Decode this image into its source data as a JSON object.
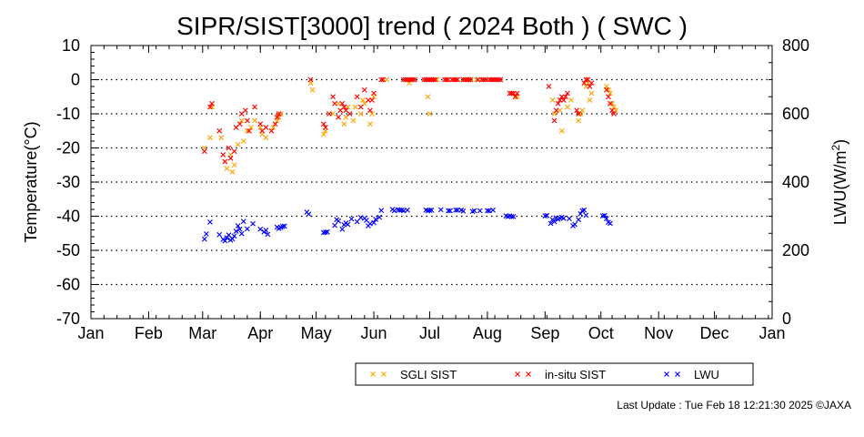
{
  "chart_data": {
    "type": "scatter",
    "title": "SIPR/SIST[3000] trend ( 2024 Both ) ( SWC )",
    "ylabel": "Temperature(°C)",
    "y2label_main": "LWU(W/m",
    "y2label_sup": "2",
    "y2label_tail": ")",
    "ylim": [
      -70,
      10
    ],
    "y2lim": [
      0,
      800
    ],
    "xlim": [
      0,
      366
    ],
    "yticks": [
      "10",
      "0",
      "-10",
      "-20",
      "-30",
      "-40",
      "-50",
      "-60",
      "-70"
    ],
    "y2ticks": [
      "800",
      "600",
      "400",
      "200",
      "0"
    ],
    "month_labels": [
      "Jan",
      "Feb",
      "Mar",
      "Apr",
      "May",
      "Jun",
      "Jul",
      "Aug",
      "Sep",
      "Oct",
      "Nov",
      "Dec",
      "Jan"
    ],
    "month_start_days": [
      0,
      31,
      60,
      91,
      121,
      152,
      182,
      213,
      244,
      274,
      305,
      335,
      366
    ],
    "grid": "dotted horizontal",
    "legend_position": "bottom-right",
    "series": [
      {
        "name": "SGLI SIST",
        "axis": "left",
        "color": "#ffa500",
        "points": [
          [
            61,
            -20
          ],
          [
            64,
            -17
          ],
          [
            65,
            -8
          ],
          [
            70,
            -17
          ],
          [
            72,
            -24
          ],
          [
            73,
            -26
          ],
          [
            75,
            -22
          ],
          [
            76,
            -27
          ],
          [
            77,
            -25
          ],
          [
            79,
            -19
          ],
          [
            81,
            -12
          ],
          [
            82,
            -18
          ],
          [
            84,
            -15
          ],
          [
            86,
            -14
          ],
          [
            88,
            -12
          ],
          [
            91,
            -14
          ],
          [
            92,
            -16
          ],
          [
            94,
            -17
          ],
          [
            98,
            -14
          ],
          [
            100,
            -12
          ],
          [
            101,
            -11
          ],
          [
            102,
            -10
          ],
          [
            118,
            -1
          ],
          [
            119,
            -3
          ],
          [
            125,
            -16
          ],
          [
            126,
            -15
          ],
          [
            130,
            -10
          ],
          [
            133,
            -7
          ],
          [
            134,
            -9
          ],
          [
            136,
            -13
          ],
          [
            137,
            -11
          ],
          [
            138,
            -8
          ],
          [
            141,
            -12
          ],
          [
            142,
            -8
          ],
          [
            145,
            -10
          ],
          [
            146,
            -6
          ],
          [
            147,
            -7
          ],
          [
            150,
            -13
          ],
          [
            151,
            -10
          ],
          [
            152,
            -5
          ],
          [
            159,
            0
          ],
          [
            170,
            0
          ],
          [
            171,
            -1
          ],
          [
            181,
            -5
          ],
          [
            182,
            -10
          ],
          [
            186,
            0
          ],
          [
            191,
            0
          ],
          [
            196,
            0
          ],
          [
            200,
            0
          ],
          [
            203,
            0
          ],
          [
            207,
            0
          ],
          [
            212,
            0
          ],
          [
            216,
            0
          ],
          [
            220,
            0
          ],
          [
            227,
            -4
          ],
          [
            228,
            -5
          ],
          [
            229,
            -5
          ],
          [
            248,
            -6
          ],
          [
            249,
            -10
          ],
          [
            252,
            -9
          ],
          [
            253,
            -15
          ],
          [
            256,
            -8
          ],
          [
            258,
            -6
          ],
          [
            262,
            -12
          ],
          [
            263,
            -10
          ],
          [
            264,
            -9
          ],
          [
            266,
            -2
          ],
          [
            267,
            -1
          ],
          [
            268,
            -6
          ],
          [
            269,
            -4
          ],
          [
            277,
            -2
          ],
          [
            278,
            -3
          ],
          [
            279,
            -4
          ],
          [
            280,
            -7
          ],
          [
            281,
            -8
          ],
          [
            282,
            -9
          ]
        ]
      },
      {
        "name": "in-situ SIST",
        "axis": "left",
        "color": "#ff0000",
        "points": [
          [
            61,
            -21
          ],
          [
            64,
            -8
          ],
          [
            65,
            -7
          ],
          [
            69,
            -15
          ],
          [
            71,
            -22
          ],
          [
            72,
            -24
          ],
          [
            74,
            -20
          ],
          [
            75,
            -23
          ],
          [
            77,
            -21
          ],
          [
            78,
            -14
          ],
          [
            80,
            -13
          ],
          [
            81,
            -10
          ],
          [
            83,
            -9
          ],
          [
            84,
            -12
          ],
          [
            85,
            -15
          ],
          [
            88,
            -8
          ],
          [
            91,
            -13
          ],
          [
            92,
            -15
          ],
          [
            94,
            -14
          ],
          [
            97,
            -15
          ],
          [
            99,
            -13
          ],
          [
            100,
            -11
          ],
          [
            101,
            -10
          ],
          [
            118,
            0
          ],
          [
            125,
            -13
          ],
          [
            126,
            -14
          ],
          [
            128,
            -10
          ],
          [
            130,
            -5
          ],
          [
            131,
            -7
          ],
          [
            133,
            -11
          ],
          [
            134,
            -9
          ],
          [
            135,
            -7
          ],
          [
            136,
            -8
          ],
          [
            137,
            -9
          ],
          [
            139,
            -10
          ],
          [
            143,
            -5
          ],
          [
            145,
            -8
          ],
          [
            147,
            -3
          ],
          [
            149,
            -6
          ],
          [
            150,
            -9
          ],
          [
            151,
            -6
          ],
          [
            152,
            -4
          ],
          [
            156,
            0
          ],
          [
            157,
            0
          ],
          [
            168,
            0
          ],
          [
            169,
            0
          ],
          [
            170,
            0
          ],
          [
            171,
            0
          ],
          [
            172,
            0
          ],
          [
            173,
            0
          ],
          [
            174,
            0
          ],
          [
            179,
            0
          ],
          [
            180,
            0
          ],
          [
            181,
            0
          ],
          [
            182,
            0
          ],
          [
            183,
            0
          ],
          [
            184,
            0
          ],
          [
            185,
            0
          ],
          [
            190,
            0
          ],
          [
            191,
            0
          ],
          [
            192,
            0
          ],
          [
            194,
            0
          ],
          [
            195,
            0
          ],
          [
            196,
            0
          ],
          [
            197,
            0
          ],
          [
            200,
            0
          ],
          [
            201,
            0
          ],
          [
            202,
            0
          ],
          [
            203,
            0
          ],
          [
            204,
            0
          ],
          [
            208,
            0
          ],
          [
            210,
            0
          ],
          [
            211,
            0
          ],
          [
            212,
            0
          ],
          [
            214,
            0
          ],
          [
            215,
            0
          ],
          [
            216,
            0
          ],
          [
            217,
            0
          ],
          [
            218,
            0
          ],
          [
            219,
            0
          ],
          [
            220,
            0
          ],
          [
            225,
            -4
          ],
          [
            226,
            -4
          ],
          [
            227,
            -4
          ],
          [
            228,
            -5
          ],
          [
            229,
            -4
          ],
          [
            246,
            -2
          ],
          [
            249,
            -12
          ],
          [
            250,
            -9
          ],
          [
            251,
            -7
          ],
          [
            252,
            -6
          ],
          [
            253,
            -5
          ],
          [
            254,
            -6
          ],
          [
            255,
            -5
          ],
          [
            256,
            -4
          ],
          [
            261,
            -9
          ],
          [
            262,
            -10
          ],
          [
            265,
            -1
          ],
          [
            266,
            0
          ],
          [
            267,
            0
          ],
          [
            268,
            -2
          ],
          [
            269,
            -1
          ],
          [
            277,
            -3
          ],
          [
            278,
            -5
          ],
          [
            279,
            -7
          ],
          [
            280,
            -9
          ],
          [
            281,
            -10
          ]
        ]
      },
      {
        "name": "LWU",
        "axis": "right",
        "color": "#0000ff",
        "points": [
          [
            61,
            233
          ],
          [
            62,
            248
          ],
          [
            64,
            283
          ],
          [
            69,
            246
          ],
          [
            71,
            232
          ],
          [
            72,
            228
          ],
          [
            73,
            237
          ],
          [
            74,
            245
          ],
          [
            75,
            230
          ],
          [
            76,
            234
          ],
          [
            77,
            242
          ],
          [
            78,
            256
          ],
          [
            79,
            272
          ],
          [
            80,
            262
          ],
          [
            81,
            249
          ],
          [
            82,
            285
          ],
          [
            84,
            263
          ],
          [
            87,
            278
          ],
          [
            91,
            262
          ],
          [
            93,
            254
          ],
          [
            94,
            259
          ],
          [
            95,
            247
          ],
          [
            100,
            268
          ],
          [
            101,
            264
          ],
          [
            102,
            267
          ],
          [
            103,
            270
          ],
          [
            104,
            271
          ],
          [
            116,
            312
          ],
          [
            117,
            306
          ],
          [
            125,
            252
          ],
          [
            126,
            253
          ],
          [
            127,
            254
          ],
          [
            131,
            273
          ],
          [
            132,
            290
          ],
          [
            133,
            286
          ],
          [
            135,
            262
          ],
          [
            136,
            275
          ],
          [
            137,
            280
          ],
          [
            138,
            276
          ],
          [
            140,
            292
          ],
          [
            143,
            284
          ],
          [
            145,
            296
          ],
          [
            147,
            294
          ],
          [
            148,
            288
          ],
          [
            149,
            272
          ],
          [
            150,
            278
          ],
          [
            152,
            281
          ],
          [
            153,
            291
          ],
          [
            155,
            297
          ],
          [
            156,
            317
          ],
          [
            162,
            320
          ],
          [
            163,
            316
          ],
          [
            165,
            319
          ],
          [
            166,
            318
          ],
          [
            167,
            318
          ],
          [
            168,
            316
          ],
          [
            170,
            318
          ],
          [
            180,
            318
          ],
          [
            181,
            316
          ],
          [
            182,
            317
          ],
          [
            183,
            318
          ],
          [
            188,
            319
          ],
          [
            192,
            316
          ],
          [
            193,
            316
          ],
          [
            196,
            318
          ],
          [
            197,
            318
          ],
          [
            199,
            318
          ],
          [
            200,
            315
          ],
          [
            205,
            314
          ],
          [
            206,
            316
          ],
          [
            209,
            316
          ],
          [
            213,
            316
          ],
          [
            214,
            316
          ],
          [
            216,
            318
          ],
          [
            223,
            301
          ],
          [
            224,
            299
          ],
          [
            225,
            301
          ],
          [
            226,
            299
          ],
          [
            227,
            299
          ],
          [
            244,
            301
          ],
          [
            245,
            302
          ],
          [
            247,
            279
          ],
          [
            248,
            290
          ],
          [
            249,
            284
          ],
          [
            250,
            295
          ],
          [
            251,
            291
          ],
          [
            252,
            294
          ],
          [
            253,
            297
          ],
          [
            254,
            294
          ],
          [
            257,
            293
          ],
          [
            259,
            272
          ],
          [
            260,
            276
          ],
          [
            262,
            290
          ],
          [
            263,
            307
          ],
          [
            264,
            316
          ],
          [
            265,
            318
          ],
          [
            266,
            303
          ],
          [
            275,
            301
          ],
          [
            276,
            302
          ],
          [
            277,
            293
          ],
          [
            278,
            282
          ],
          [
            279,
            279
          ]
        ]
      }
    ]
  },
  "legend": {
    "items": [
      {
        "label": "SGLI SIST",
        "color": "#ffa500"
      },
      {
        "label": "in-situ SIST",
        "color": "#ff0000"
      },
      {
        "label": "LWU",
        "color": "#0000ff"
      }
    ]
  },
  "footer": {
    "last_update": "Last Update : Tue Feb 18 12:21:30 2025",
    "copyright": "©JAXA"
  }
}
